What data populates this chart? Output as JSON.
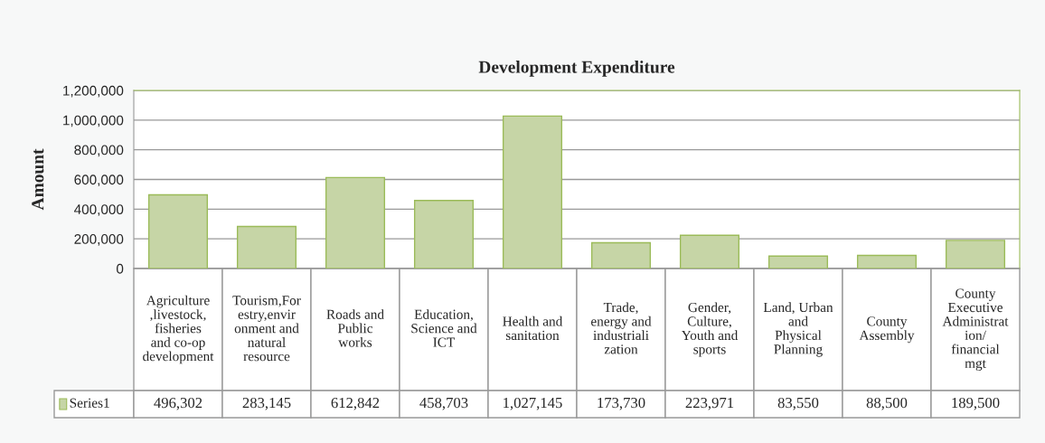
{
  "chart_data": {
    "type": "bar",
    "title": "Development Expenditure",
    "ylabel": "Amount",
    "categories": [
      "Agriculture,livestock,fisheries and co-op development",
      "Tourism,Forestry,environment and natural resource",
      "Roads and Public works",
      "Education, Science and ICT",
      "Health and sanitation",
      "Trade, energy and industrialization",
      "Gender, Culture, Youth and sports",
      "Land, Urban and Physical Planning",
      "County Assembly",
      "County Executive Administration/ financial mgt"
    ],
    "series": [
      {
        "name": "Series1",
        "color": "#c6d5a6",
        "values": [
          496302,
          283145,
          612842,
          458703,
          1027145,
          173730,
          223971,
          83550,
          88500,
          189500
        ],
        "value_labels": [
          "496,302",
          "283,145",
          "612,842",
          "458,703",
          "1,027,145",
          "173,730",
          "223,971",
          "83,550",
          "88,500",
          "189,500"
        ]
      }
    ],
    "ylim": [
      0,
      1200000
    ],
    "yticks": [
      {
        "value": 0,
        "label": "0"
      },
      {
        "value": 200000,
        "label": "200,000"
      },
      {
        "value": 400000,
        "label": "400,000"
      },
      {
        "value": 600000,
        "label": "600,000"
      },
      {
        "value": 800000,
        "label": "800,000"
      },
      {
        "value": 1000000,
        "label": "1,000,000"
      },
      {
        "value": 1200000,
        "label": "1,200,000"
      }
    ],
    "grid": "y"
  }
}
